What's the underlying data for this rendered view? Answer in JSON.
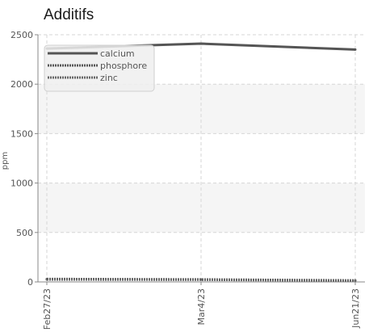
{
  "chart_data": {
    "type": "line",
    "title": "Additifs",
    "xlabel": "",
    "ylabel": "ppm",
    "x": [
      "Feb27/23",
      "Mar4/23",
      "Jun21/23"
    ],
    "x_ticks": [
      "Feb27/23",
      "Mar4/23",
      "Jun21/23"
    ],
    "y_ticks": [
      0,
      500,
      1000,
      1500,
      2000,
      2500
    ],
    "ylim": [
      0,
      2500
    ],
    "grid": true,
    "legend_position": "top-left",
    "series": [
      {
        "name": "calcium",
        "values": [
          2360,
          2410,
          2350
        ],
        "color": "#555555",
        "style": "solid"
      },
      {
        "name": "phosphore",
        "values": [
          30,
          25,
          15
        ],
        "color": "#555555",
        "style": "dotted"
      },
      {
        "name": "zinc",
        "values": [
          25,
          22,
          12
        ],
        "color": "#666666",
        "style": "dotted"
      }
    ]
  }
}
